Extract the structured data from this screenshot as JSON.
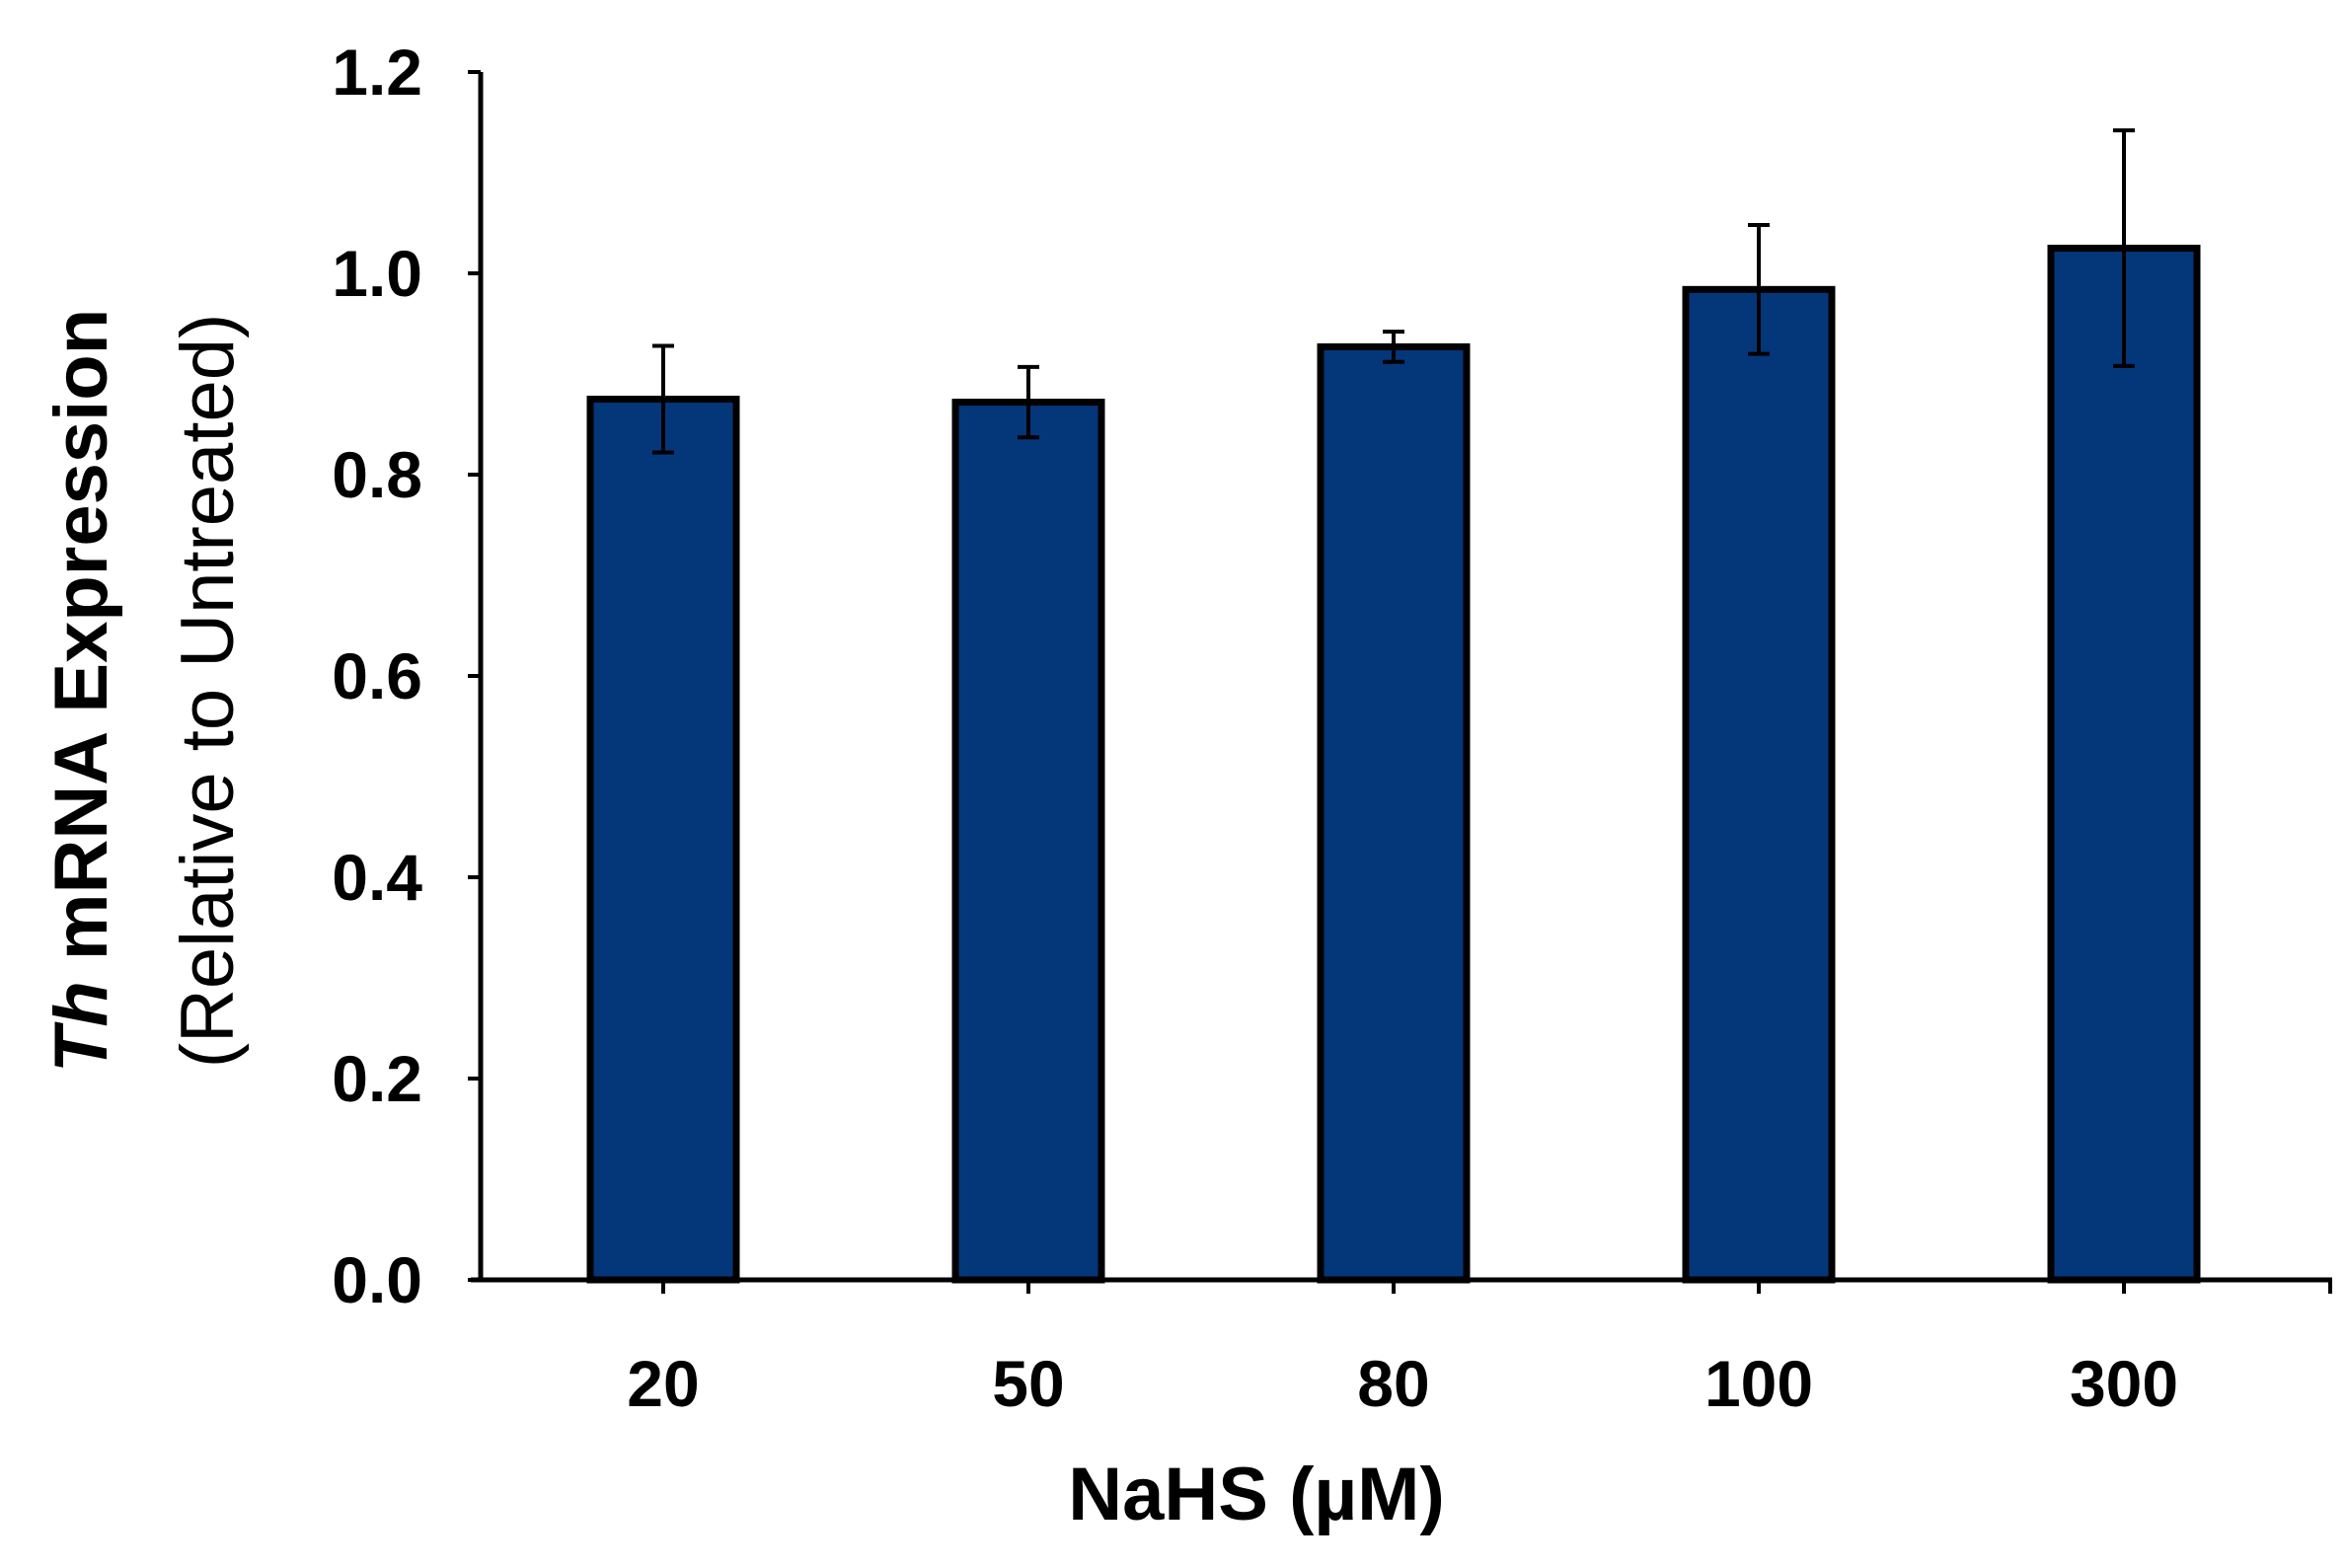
{
  "chart_data": {
    "type": "bar",
    "categories": [
      "20",
      "50",
      "80",
      "100",
      "300"
    ],
    "values": [
      0.875,
      0.872,
      0.927,
      0.984,
      1.025
    ],
    "errors": [
      0.053,
      0.035,
      0.015,
      0.064,
      0.117
    ],
    "xlabel": "NaHS (µM)",
    "ylabel_italic": "Th",
    "ylabel_main": " mRNA Expression",
    "ylabel_sub": "(Relative to Untreated)",
    "ylim": [
      0,
      1.2
    ],
    "yticks": [
      "0.0",
      "0.2",
      "0.4",
      "0.6",
      "0.8",
      "1.0",
      "1.2"
    ],
    "grid": false,
    "legend": "none",
    "bar_color": "#04367A",
    "edge_color": "#000000"
  }
}
